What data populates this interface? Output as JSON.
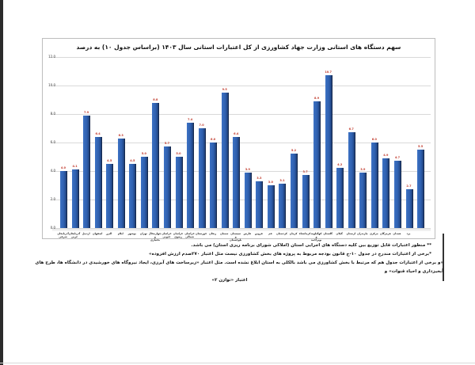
{
  "page": {
    "notes": [
      "** منظور اعتبارات قابل توزیع بین کلیه دستگاه های اجرایی استان (املاکی شورای برنامه ریزی استان) می باشد.",
      "*برخی از اعتبارات مندرج در جدول ۱۰-ج قانون بودجه مربوط به پروژه های بخش کشاورزی نیست مثل اعتبار ۲۷۰صدم ارزش افزوده»",
      "«و برخی از اعتبارات جدول هم که مرتبط با بخش کشاورزی می باشد بالکلی به استان ابلاغ نشده است. مثل اعتبار «زیرساخت های آبرزی، ایجاد نیروگاه های خورشیدی در دانشگاه ها، طرح های آبخیزداری و احیاء قنوات» و",
      "اعتبار «توازن ۲»"
    ]
  },
  "chart_data": {
    "type": "bar",
    "title": "سهم دستگاه های استانی وزارت جهاد کشاورزی از کل اعتبارات استانی سال ۱۴۰۳ (براساس جدول ۱۰) به درصد",
    "xlabel": "",
    "ylabel": "",
    "ylim": [
      0,
      12
    ],
    "yticks": [
      "0.0",
      "2.0",
      "4.0",
      "6.0",
      "8.0",
      "10.0",
      "12.0"
    ],
    "grid": true,
    "legend": null,
    "bar_color": "#2e5fae",
    "label_color": "#c0392b",
    "categories": [
      "آذربایجان شرقی",
      "آذربایجان غربی",
      "اردبیل",
      "اصفهان",
      "البرز",
      "ایلام",
      "بوشهر",
      "تهران",
      "چهارمحال و بختیاری",
      "خراسان جنوبی",
      "خراسان رضوی",
      "خراسان شمالی",
      "خوزستان",
      "زنجان",
      "سمنان",
      "سیستان و بلوچستان",
      "فارس",
      "قزوین",
      "قم",
      "کردستان",
      "کرمان",
      "کرمانشاه",
      "کهگیلویه و بویراحمد",
      "گلستان",
      "گیلان",
      "لرستان",
      "مازندران",
      "مرکزی",
      "هرمزگان",
      "همدان",
      "یزد",
      ""
    ],
    "values": [
      4.0,
      4.1,
      7.9,
      6.4,
      4.5,
      6.3,
      4.5,
      5.0,
      8.8,
      5.7,
      5.0,
      7.4,
      7.0,
      6.0,
      9.5,
      6.4,
      3.9,
      3.3,
      3.0,
      3.1,
      5.2,
      3.7,
      8.9,
      10.7,
      4.2,
      6.7,
      3.9,
      6.0,
      4.9,
      4.7,
      2.7,
      5.5
    ]
  }
}
